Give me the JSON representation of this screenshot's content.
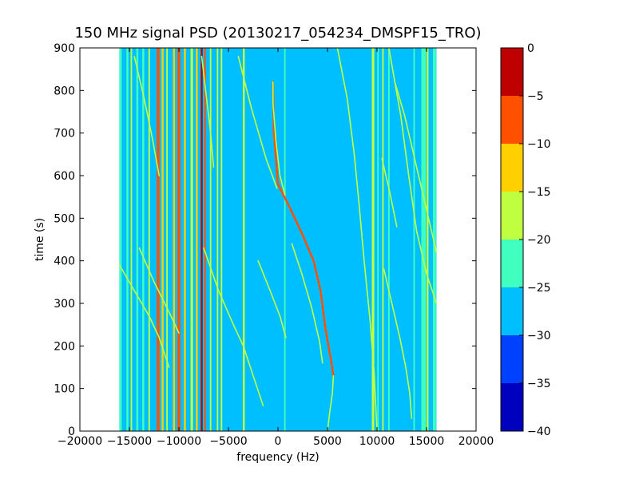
{
  "chart_data": {
    "type": "heatmap",
    "title": "150 MHz signal PSD (20130217_054234_DMSPF15_TRO)",
    "xlabel": "frequency (Hz)",
    "ylabel": "time (s)",
    "xlim": [
      -20000,
      20000
    ],
    "ylim": [
      0,
      900
    ],
    "xticks": [
      -20000,
      -15000,
      -10000,
      -5000,
      0,
      5000,
      10000,
      15000,
      20000
    ],
    "yticks": [
      0,
      100,
      200,
      300,
      400,
      500,
      600,
      700,
      800,
      900
    ],
    "data_extent_x": [
      -16000,
      16000
    ],
    "background_level": -27.5,
    "colorbar": {
      "levels": [
        -40,
        -35,
        -30,
        -25,
        -20,
        -15,
        -10,
        -5,
        0
      ],
      "colors": [
        "#0000bf",
        "#0040ff",
        "#00bfff",
        "#40ffbf",
        "#bfff40",
        "#ffcf00",
        "#ff5000",
        "#bf0000"
      ]
    },
    "vertical_bands": [
      {
        "f": -15900,
        "w": 250,
        "level": -22.5
      },
      {
        "f": -15200,
        "w": 200,
        "level": -22.5
      },
      {
        "f": -14800,
        "w": 150,
        "level": -17.5
      },
      {
        "f": -14200,
        "w": 200,
        "level": -22.5
      },
      {
        "f": -13600,
        "w": 200,
        "level": -22.5
      },
      {
        "f": -13000,
        "w": 150,
        "level": -17.5
      },
      {
        "f": -12100,
        "w": 280,
        "level": -7.5
      },
      {
        "f": -11650,
        "w": 200,
        "level": -12.5
      },
      {
        "f": -11200,
        "w": 150,
        "level": -17.5
      },
      {
        "f": -10500,
        "w": 200,
        "level": -12.5
      },
      {
        "f": -10000,
        "w": 300,
        "level": -7.5
      },
      {
        "f": -9400,
        "w": 200,
        "level": -12.5
      },
      {
        "f": -8700,
        "w": 250,
        "level": -17.5
      },
      {
        "f": -8200,
        "w": 200,
        "level": -12.5
      },
      {
        "f": -7700,
        "w": 200,
        "level": -2.5
      },
      {
        "f": -7350,
        "w": 150,
        "level": -7.5
      },
      {
        "f": -6800,
        "w": 150,
        "level": -17.5
      },
      {
        "f": -6100,
        "w": 150,
        "level": -17.5
      },
      {
        "f": -5700,
        "w": 150,
        "level": -17.5
      },
      {
        "f": -3450,
        "w": 200,
        "level": -17.5
      },
      {
        "f": 700,
        "w": 150,
        "level": -22.5
      },
      {
        "f": 9600,
        "w": 250,
        "level": -17.5
      },
      {
        "f": 10100,
        "w": 150,
        "level": -22.5
      },
      {
        "f": 10600,
        "w": 150,
        "level": -17.5
      },
      {
        "f": 11200,
        "w": 150,
        "level": -22.5
      },
      {
        "f": 13750,
        "w": 150,
        "level": -22.5
      },
      {
        "f": 14700,
        "w": 450,
        "level": -22.5
      },
      {
        "f": 15100,
        "w": 200,
        "level": -17.5
      },
      {
        "f": 15800,
        "w": 300,
        "level": -22.5
      }
    ],
    "traces": [
      {
        "level": -7.5,
        "points": [
          [
            -500,
            820
          ],
          [
            -400,
            700
          ],
          [
            0,
            580
          ],
          [
            1300,
            520
          ],
          [
            2500,
            460
          ],
          [
            3600,
            400
          ],
          [
            4300,
            330
          ],
          [
            4800,
            240
          ],
          [
            5400,
            160
          ],
          [
            5600,
            130
          ]
        ]
      },
      {
        "level": -17.5,
        "points": [
          [
            -500,
            820
          ],
          [
            -500,
            770
          ],
          [
            -200,
            680
          ],
          [
            200,
            600
          ],
          [
            700,
            555
          ]
        ]
      },
      {
        "level": -17.5,
        "points": [
          [
            5600,
            130
          ],
          [
            5500,
            90
          ],
          [
            5200,
            40
          ],
          [
            5000,
            0
          ]
        ]
      },
      {
        "level": -17.5,
        "points": [
          [
            -16000,
            390
          ],
          [
            -14500,
            330
          ],
          [
            -13000,
            270
          ],
          [
            -12000,
            220
          ],
          [
            -11000,
            150
          ]
        ]
      },
      {
        "level": -17.5,
        "points": [
          [
            -14500,
            880
          ],
          [
            -13500,
            780
          ],
          [
            -12700,
            690
          ],
          [
            -12000,
            600
          ]
        ]
      },
      {
        "level": -17.5,
        "points": [
          [
            -14000,
            430
          ],
          [
            -12500,
            350
          ],
          [
            -11000,
            280
          ],
          [
            -10000,
            230
          ]
        ]
      },
      {
        "level": -17.5,
        "points": [
          [
            -7500,
            430
          ],
          [
            -6000,
            330
          ],
          [
            -4500,
            250
          ],
          [
            -3500,
            200
          ],
          [
            -2500,
            130
          ],
          [
            -1500,
            60
          ]
        ]
      },
      {
        "level": -17.5,
        "points": [
          [
            -7700,
            880
          ],
          [
            -7200,
            780
          ],
          [
            -6800,
            700
          ],
          [
            -6500,
            620
          ]
        ]
      },
      {
        "level": -17.5,
        "points": [
          [
            -4000,
            880
          ],
          [
            -2700,
            760
          ],
          [
            -1200,
            640
          ],
          [
            -100,
            570
          ]
        ]
      },
      {
        "level": -17.5,
        "points": [
          [
            -2000,
            400
          ],
          [
            -800,
            330
          ],
          [
            200,
            270
          ],
          [
            800,
            220
          ]
        ]
      },
      {
        "level": -17.5,
        "points": [
          [
            1400,
            440
          ],
          [
            2400,
            370
          ],
          [
            3400,
            290
          ],
          [
            4200,
            210
          ],
          [
            4500,
            160
          ]
        ]
      },
      {
        "level": -17.5,
        "points": [
          [
            6000,
            900
          ],
          [
            7000,
            780
          ],
          [
            7700,
            650
          ],
          [
            8200,
            530
          ],
          [
            8700,
            400
          ],
          [
            9300,
            260
          ],
          [
            9700,
            140
          ],
          [
            10000,
            0
          ]
        ]
      },
      {
        "level": -17.5,
        "points": [
          [
            10700,
            380
          ],
          [
            11500,
            300
          ],
          [
            12300,
            220
          ],
          [
            12900,
            150
          ],
          [
            13300,
            90
          ],
          [
            13500,
            30
          ]
        ]
      },
      {
        "level": -17.5,
        "points": [
          [
            11200,
            900
          ],
          [
            11800,
            820
          ],
          [
            12400,
            740
          ],
          [
            13200,
            600
          ],
          [
            14000,
            470
          ],
          [
            15000,
            370
          ],
          [
            16000,
            300
          ]
        ]
      },
      {
        "level": -17.5,
        "points": [
          [
            11800,
            820
          ],
          [
            12800,
            740
          ],
          [
            14000,
            620
          ],
          [
            15200,
            500
          ],
          [
            16000,
            420
          ]
        ]
      },
      {
        "level": -17.5,
        "points": [
          [
            10500,
            640
          ],
          [
            11300,
            560
          ],
          [
            12000,
            480
          ]
        ]
      }
    ]
  }
}
